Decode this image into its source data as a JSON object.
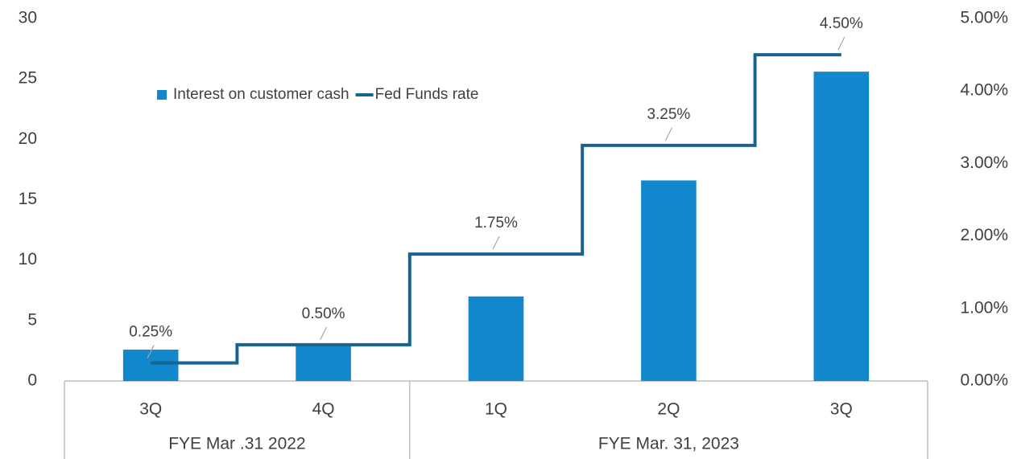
{
  "chart_data": {
    "type": "bar_line",
    "categories": [
      "3Q",
      "4Q",
      "1Q",
      "2Q",
      "3Q"
    ],
    "category_groups": [
      {
        "label": "FYE Mar .31 2022",
        "span": 2
      },
      {
        "label": "FYE Mar. 31, 2023",
        "span": 3
      }
    ],
    "series": [
      {
        "name": "Interest on customer cash",
        "type": "bar",
        "color": "#1188cc",
        "values": [
          2.6,
          2.9,
          7.0,
          16.6,
          25.6
        ]
      },
      {
        "name": "Fed Funds rate",
        "type": "step",
        "axis": "y2",
        "color": "#17648f",
        "values": [
          0.25,
          0.5,
          1.75,
          3.25,
          4.5
        ],
        "value_labels": [
          "0.25%",
          "0.50%",
          "1.75%",
          "3.25%",
          "4.50%"
        ]
      }
    ],
    "ylim": [
      0,
      30
    ],
    "yticks": [
      0,
      5,
      10,
      15,
      20,
      25,
      30
    ],
    "y2lim": [
      0,
      5
    ],
    "y2ticks": [
      {
        "value": 0,
        "label": "0.00%"
      },
      {
        "value": 1,
        "label": "1.00%"
      },
      {
        "value": 2,
        "label": "2.00%"
      },
      {
        "value": 3,
        "label": "3.00%"
      },
      {
        "value": 4,
        "label": "4.00%"
      },
      {
        "value": 5,
        "label": "5.00%"
      }
    ],
    "legend": "top-left",
    "grid": false
  }
}
